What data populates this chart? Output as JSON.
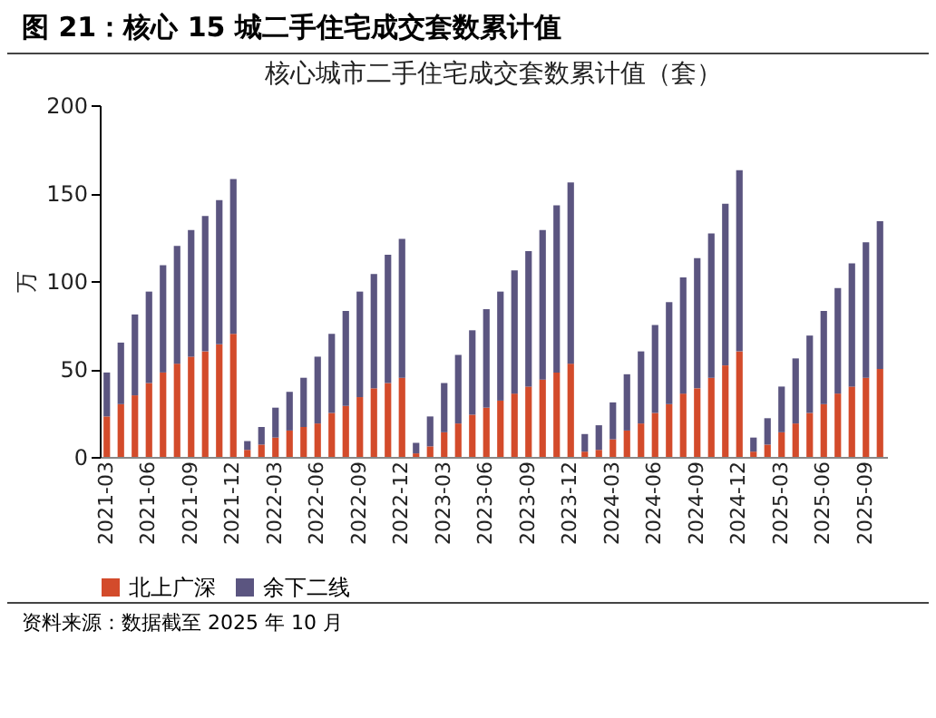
{
  "chart_data": {
    "type": "bar",
    "title": "图 21：核心 15 城二手住宅成交套数累计值",
    "subtitle": "核心城市二手住宅成交套数累计值（套）",
    "ylabel": "万",
    "categories": [
      "2021-03",
      null,
      null,
      "2021-06",
      null,
      null,
      "2021-09",
      null,
      null,
      "2021-12",
      null,
      null,
      "2022-03",
      null,
      null,
      "2022-06",
      null,
      null,
      "2022-09",
      null,
      null,
      "2022-12",
      null,
      null,
      "2023-03",
      null,
      null,
      "2023-06",
      null,
      null,
      "2023-09",
      null,
      null,
      "2023-12",
      null,
      null,
      "2024-03",
      null,
      null,
      "2024-06",
      null,
      null,
      "2024-09",
      null,
      null,
      "2024-12",
      null,
      null,
      "2025-03",
      null,
      null,
      "2025-06",
      null,
      null,
      "2025-09",
      null
    ],
    "stacked": true,
    "series": [
      {
        "name": "北上广深",
        "color": "#d34b2b",
        "values": [
          23,
          30,
          35,
          42,
          48,
          53,
          57,
          60,
          64,
          70,
          4,
          7,
          11,
          15,
          17,
          19,
          25,
          29,
          34,
          39,
          42,
          45,
          2,
          6,
          14,
          19,
          24,
          28,
          32,
          36,
          40,
          44,
          48,
          53,
          3,
          4,
          10,
          15,
          19,
          25,
          30,
          36,
          39,
          45,
          52,
          60,
          3,
          7,
          14,
          19,
          25,
          30,
          36,
          40,
          45,
          50
        ]
      },
      {
        "name": "余下二线",
        "color": "#5b5580",
        "values": [
          25,
          35,
          46,
          52,
          61,
          67,
          72,
          77,
          82,
          88,
          5,
          10,
          17,
          22,
          28,
          38,
          45,
          54,
          60,
          65,
          73,
          79,
          6,
          17,
          28,
          39,
          48,
          56,
          62,
          70,
          77,
          85,
          95,
          103,
          10,
          14,
          21,
          32,
          41,
          50,
          58,
          66,
          74,
          82,
          92,
          103,
          8,
          15,
          26,
          37,
          44,
          53,
          60,
          70,
          77,
          84
        ]
      }
    ],
    "ylim": [
      0,
      200
    ],
    "yticks": [
      0,
      50,
      100,
      150,
      200
    ],
    "grid": false,
    "legend": "bottom",
    "annotations": [
      "资料来源：数据截至 2025 年 10 月"
    ]
  }
}
